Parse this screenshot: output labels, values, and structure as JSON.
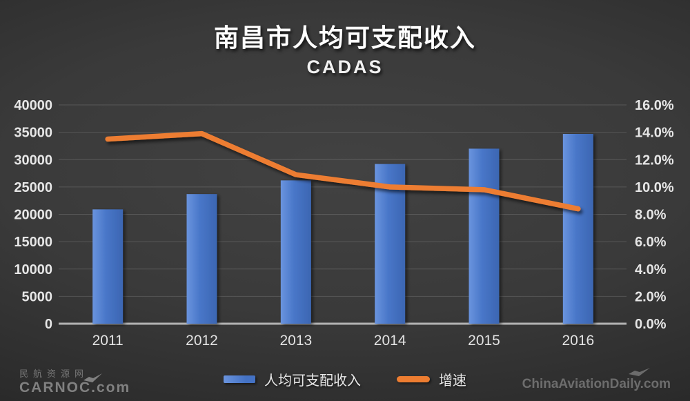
{
  "page": {
    "title": "南昌市人均可支配收入",
    "subtitle": "CADAS"
  },
  "chart_data": {
    "type": "bar",
    "title": "南昌市人均可支配收入",
    "subtitle": "CADAS",
    "categories": [
      "2011",
      "2012",
      "2013",
      "2014",
      "2015",
      "2016"
    ],
    "series": [
      {
        "name": "人均可支配收入",
        "type": "bar",
        "axis": "left",
        "color": "#4472C4",
        "values": [
          20900,
          23700,
          26200,
          29200,
          32000,
          34700
        ]
      },
      {
        "name": "增速",
        "type": "line",
        "axis": "right",
        "color": "#ED7D31",
        "values": [
          13.5,
          13.9,
          10.9,
          10.0,
          9.8,
          8.4
        ]
      }
    ],
    "y_left": {
      "min": 0,
      "max": 40000,
      "tick_values": [
        0,
        5000,
        10000,
        15000,
        20000,
        25000,
        30000,
        35000,
        40000
      ],
      "tick_labels": [
        "0",
        "5000",
        "10000",
        "15000",
        "20000",
        "25000",
        "30000",
        "35000",
        "40000"
      ]
    },
    "y_right": {
      "min": 0,
      "max": 16,
      "tick_values": [
        0,
        2,
        4,
        6,
        8,
        10,
        12,
        14,
        16
      ],
      "tick_labels": [
        "0.0%",
        "2.0%",
        "4.0%",
        "6.0%",
        "8.0%",
        "10.0%",
        "12.0%",
        "14.0%",
        "16.0%"
      ]
    },
    "grid": "horizontal",
    "legend_position": "bottom",
    "background": "dark"
  },
  "colors": {
    "bar": "#4472C4",
    "line": "#ED7D31",
    "gridline": "rgba(255,255,255,0.15)",
    "baseline": "#b3b3b3",
    "text": "#e6e6e6"
  },
  "watermarks": {
    "left_line1": "民航资源网",
    "left_line2": "CARNOC.com",
    "right": "ChinaAviationDaily.com"
  }
}
